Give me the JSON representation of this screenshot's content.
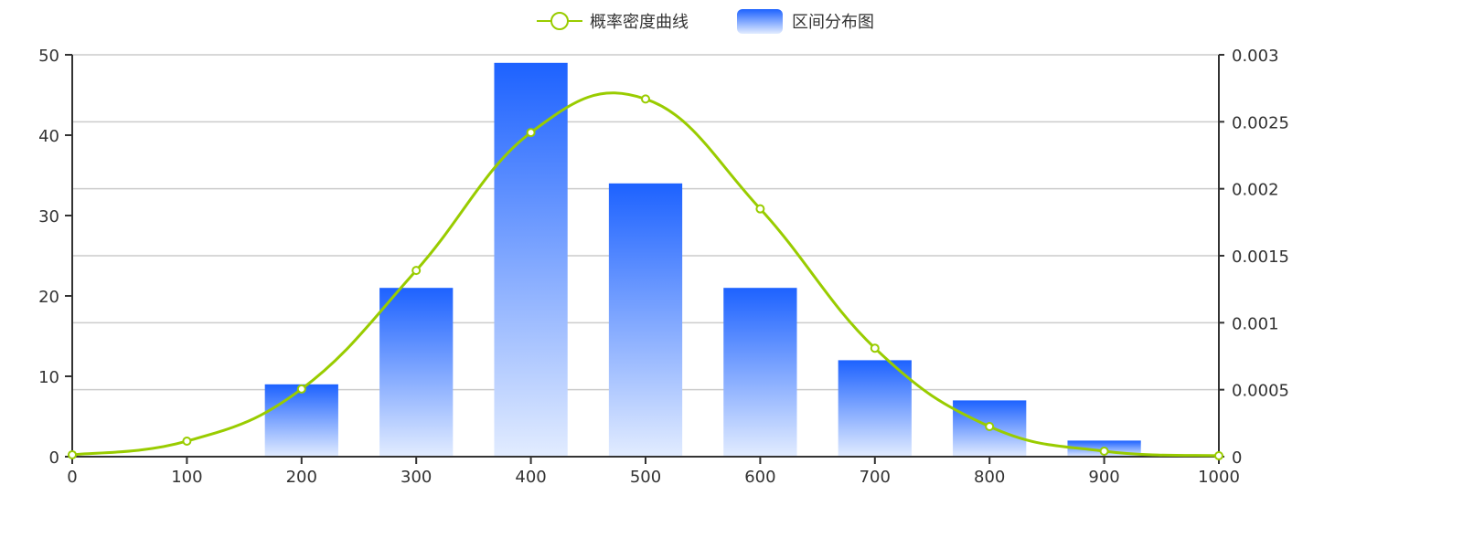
{
  "chart_data": {
    "type": "bar+line",
    "legend": {
      "position": "top-center",
      "items": [
        "概率密度曲线",
        "区间分布图"
      ]
    },
    "x": {
      "range": [
        0,
        1000
      ],
      "ticks": [
        "0",
        "100",
        "200",
        "300",
        "400",
        "500",
        "600",
        "700",
        "800",
        "900",
        "1000"
      ]
    },
    "y_left": {
      "range": [
        0,
        50
      ],
      "ticks": [
        "0",
        "10",
        "20",
        "30",
        "40",
        "50"
      ]
    },
    "y_right": {
      "range": [
        0,
        0.003
      ],
      "ticks": [
        "0",
        "0.0005",
        "0.001",
        "0.0015",
        "0.002",
        "0.0025",
        "0.003"
      ]
    },
    "grid": true,
    "series": [
      {
        "name": "区间分布图",
        "type": "bar",
        "axis": "left",
        "x": [
          200,
          300,
          400,
          500,
          600,
          700,
          800,
          900
        ],
        "values": [
          9,
          21,
          49,
          34,
          21,
          12,
          7,
          2
        ]
      },
      {
        "name": "概率密度曲线",
        "type": "line",
        "axis": "right",
        "smooth": true,
        "x": [
          0,
          100,
          200,
          300,
          400,
          500,
          600,
          700,
          800,
          900,
          1000
        ],
        "values": [
          1.4e-05,
          0.000116,
          0.000505,
          0.00139,
          0.00242,
          0.00267,
          0.00185,
          0.00081,
          0.000225,
          4.1e-05,
          7e-06
        ]
      }
    ]
  },
  "colors": {
    "line": "#99cc00",
    "bar_top": "#1d62ff",
    "bar_bottom": "#e2ecff",
    "axis": "#333333",
    "grid": "#cccccc"
  }
}
